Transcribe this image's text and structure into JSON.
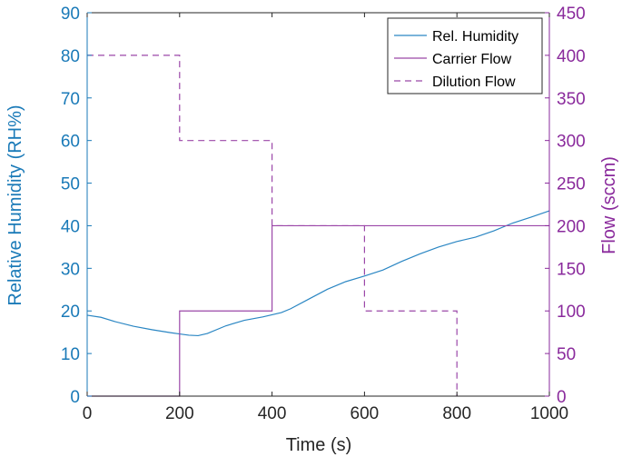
{
  "chart_data": {
    "type": "line",
    "title": "",
    "xlabel": "Time (s)",
    "ylabel_left": "Relative Humidity (RH%)",
    "ylabel_right": "Flow (sccm)",
    "xlim": [
      0,
      1000
    ],
    "ylim_left": [
      0,
      90
    ],
    "ylim_right": [
      0,
      450
    ],
    "x_ticks": [
      0,
      200,
      400,
      600,
      800,
      1000
    ],
    "y_left_ticks": [
      0,
      10,
      20,
      30,
      40,
      50,
      60,
      70,
      80,
      90
    ],
    "y_right_ticks": [
      0,
      50,
      100,
      150,
      200,
      250,
      300,
      350,
      400,
      450
    ],
    "grid": false,
    "legend_position": "top-right",
    "colors": {
      "left_axis": "#1a7ab8",
      "right_axis": "#8a2a9c",
      "frame": "#262626"
    },
    "series": [
      {
        "name": "Rel. Humidity",
        "axis": "left",
        "style": "solid",
        "color": "#2a86c3",
        "x": [
          0,
          30,
          60,
          100,
          140,
          180,
          200,
          220,
          240,
          260,
          300,
          340,
          380,
          420,
          440,
          480,
          520,
          560,
          600,
          640,
          680,
          720,
          760,
          800,
          840,
          880,
          920,
          960,
          1000
        ],
        "y": [
          19,
          18.5,
          17.5,
          16.4,
          15.6,
          14.9,
          14.6,
          14.3,
          14.2,
          14.7,
          16.5,
          17.8,
          18.6,
          19.6,
          20.5,
          22.8,
          25.1,
          26.9,
          28.2,
          29.6,
          31.6,
          33.4,
          35,
          36.3,
          37.3,
          38.8,
          40.6,
          42,
          43.5
        ]
      },
      {
        "name": "Carrier Flow",
        "axis": "right",
        "style": "solid",
        "color": "#9b47a8",
        "x": [
          0,
          200,
          200,
          400,
          400,
          1000
        ],
        "y": [
          0,
          0,
          100,
          100,
          200,
          200
        ]
      },
      {
        "name": "Dilution Flow",
        "axis": "right",
        "style": "dashed",
        "color": "#9b47a8",
        "x": [
          0,
          200,
          200,
          400,
          400,
          600,
          600,
          800,
          800
        ],
        "y": [
          400,
          400,
          300,
          300,
          200,
          200,
          100,
          100,
          0
        ]
      }
    ]
  }
}
